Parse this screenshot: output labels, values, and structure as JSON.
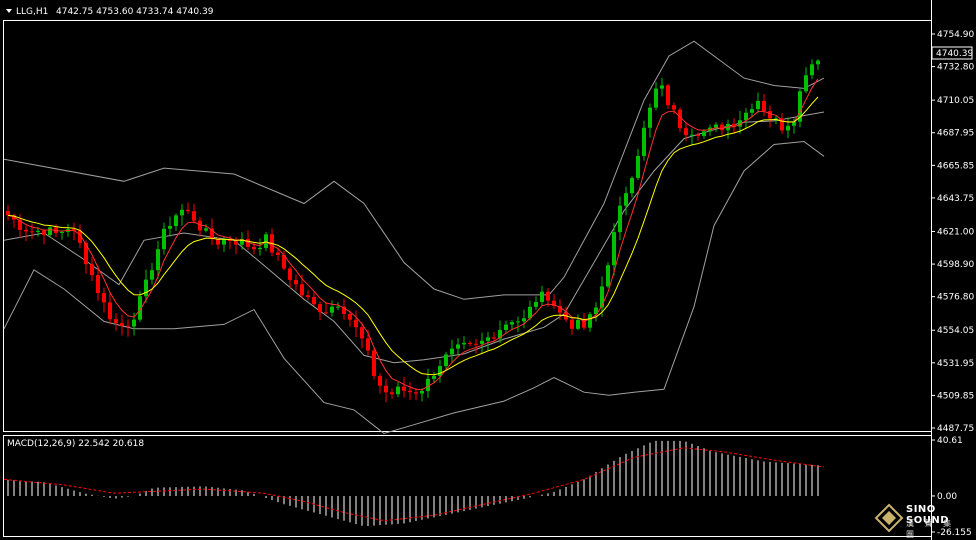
{
  "header": {
    "symbol": "LLG,H1",
    "ohlc": "4742.75 4753.60 4733.74 4740.39",
    "macd_label": "MACD(12,26,9) 22.542 20.618"
  },
  "price_axis": {
    "ticks": [
      "4754.90",
      "4732.80",
      "4710.05",
      "4687.95",
      "4665.85",
      "4643.75",
      "4621.00",
      "4598.90",
      "4576.80",
      "4554.05",
      "4531.95",
      "4509.85",
      "4487.75"
    ],
    "current": "4740.39"
  },
  "macd_axis": {
    "ticks": [
      "40.61",
      "0.00",
      "-26.155"
    ]
  },
  "logo": {
    "name": "SINO SOUND",
    "sub": "漢 聲 集 團"
  },
  "colors": {
    "up": "#00c000",
    "down": "#ff0000",
    "bands": "#a0a0a0",
    "ma_fast": "#ff3030",
    "ma_slow": "#ffff00",
    "macd_hist": "#ffffff",
    "macd_signal": "#ff0000",
    "grid": "#ffffff"
  },
  "chart_data": [
    {
      "type": "candlestick",
      "title": "LLG,H1",
      "y_range": [
        4487.75,
        4759
      ],
      "waypoints_close": [
        4632,
        4625,
        4621,
        4622,
        4619,
        4625,
        4610,
        4588,
        4568,
        4556,
        4560,
        4578,
        4605,
        4625,
        4636,
        4632,
        4620,
        4614,
        4616,
        4614,
        4610,
        4616,
        4602,
        4590,
        4578,
        4570,
        4568,
        4574,
        4560,
        4545,
        4520,
        4510,
        4514,
        4512,
        4516,
        4530,
        4538,
        4542,
        4542,
        4548,
        4555,
        4562,
        4560,
        4575,
        4578,
        4565,
        4558,
        4556,
        4570,
        4605,
        4640,
        4665,
        4695,
        4722,
        4705,
        4690,
        4690,
        4688,
        4692,
        4695,
        4700,
        4712,
        4700,
        4692,
        4698,
        4730,
        4740
      ],
      "bands": {
        "upper": [
          [
            0,
            4670
          ],
          [
            120,
            4655
          ],
          [
            160,
            4664
          ],
          [
            230,
            4660
          ],
          [
            300,
            4640
          ],
          [
            330,
            4655
          ],
          [
            360,
            4640
          ],
          [
            400,
            4600
          ],
          [
            430,
            4582
          ],
          [
            460,
            4575
          ],
          [
            500,
            4578
          ],
          [
            545,
            4578
          ],
          [
            560,
            4590
          ],
          [
            600,
            4640
          ],
          [
            640,
            4710
          ],
          [
            665,
            4740
          ],
          [
            690,
            4750
          ],
          [
            710,
            4740
          ],
          [
            740,
            4725
          ],
          [
            770,
            4720
          ],
          [
            800,
            4718
          ],
          [
            820,
            4725
          ]
        ],
        "middle": [
          [
            0,
            4615
          ],
          [
            40,
            4620
          ],
          [
            80,
            4602
          ],
          [
            115,
            4585
          ],
          [
            140,
            4615
          ],
          [
            180,
            4620
          ],
          [
            230,
            4615
          ],
          [
            260,
            4598
          ],
          [
            300,
            4575
          ],
          [
            330,
            4560
          ],
          [
            360,
            4537
          ],
          [
            390,
            4532
          ],
          [
            420,
            4534
          ],
          [
            460,
            4538
          ],
          [
            500,
            4548
          ],
          [
            540,
            4556
          ],
          [
            560,
            4565
          ],
          [
            590,
            4600
          ],
          [
            620,
            4635
          ],
          [
            650,
            4662
          ],
          [
            680,
            4684
          ],
          [
            710,
            4690
          ],
          [
            740,
            4695
          ],
          [
            770,
            4696
          ],
          [
            820,
            4702
          ]
        ],
        "lower": [
          [
            0,
            4555
          ],
          [
            30,
            4595
          ],
          [
            60,
            4582
          ],
          [
            100,
            4560
          ],
          [
            130,
            4555
          ],
          [
            170,
            4555
          ],
          [
            220,
            4558
          ],
          [
            250,
            4568
          ],
          [
            280,
            4535
          ],
          [
            320,
            4505
          ],
          [
            350,
            4500
          ],
          [
            380,
            4484
          ],
          [
            410,
            4490
          ],
          [
            450,
            4498
          ],
          [
            500,
            4506
          ],
          [
            530,
            4515
          ],
          [
            550,
            4522
          ],
          [
            580,
            4512
          ],
          [
            605,
            4510
          ],
          [
            630,
            4512
          ],
          [
            660,
            4514
          ],
          [
            690,
            4570
          ],
          [
            710,
            4625
          ],
          [
            740,
            4662
          ],
          [
            770,
            4680
          ],
          [
            800,
            4682
          ],
          [
            820,
            4672
          ]
        ]
      }
    },
    {
      "type": "bar",
      "title": "MACD(12,26,9)",
      "series": [
        {
          "name": "MACD",
          "values": [
            22.542
          ]
        },
        {
          "name": "Signal",
          "values": [
            20.618
          ]
        }
      ],
      "y_range": [
        -26.155,
        40.61
      ],
      "hist_waypoints": [
        [
          0,
          12
        ],
        [
          40,
          10
        ],
        [
          80,
          2
        ],
        [
          110,
          -2
        ],
        [
          130,
          0
        ],
        [
          150,
          6
        ],
        [
          200,
          7
        ],
        [
          240,
          4
        ],
        [
          280,
          -6
        ],
        [
          320,
          -14
        ],
        [
          360,
          -22
        ],
        [
          400,
          -20
        ],
        [
          440,
          -14
        ],
        [
          480,
          -8
        ],
        [
          520,
          -2
        ],
        [
          550,
          3
        ],
        [
          580,
          12
        ],
        [
          620,
          30
        ],
        [
          650,
          40
        ],
        [
          680,
          40
        ],
        [
          710,
          32
        ],
        [
          760,
          25
        ],
        [
          820,
          22
        ]
      ],
      "signal_waypoints": [
        [
          0,
          12
        ],
        [
          60,
          8
        ],
        [
          110,
          2
        ],
        [
          140,
          3
        ],
        [
          200,
          5
        ],
        [
          260,
          2
        ],
        [
          300,
          -4
        ],
        [
          340,
          -12
        ],
        [
          380,
          -18
        ],
        [
          430,
          -14
        ],
        [
          480,
          -6
        ],
        [
          530,
          2
        ],
        [
          580,
          12
        ],
        [
          630,
          28
        ],
        [
          680,
          35
        ],
        [
          720,
          32
        ],
        [
          770,
          26
        ],
        [
          820,
          21
        ]
      ]
    }
  ]
}
